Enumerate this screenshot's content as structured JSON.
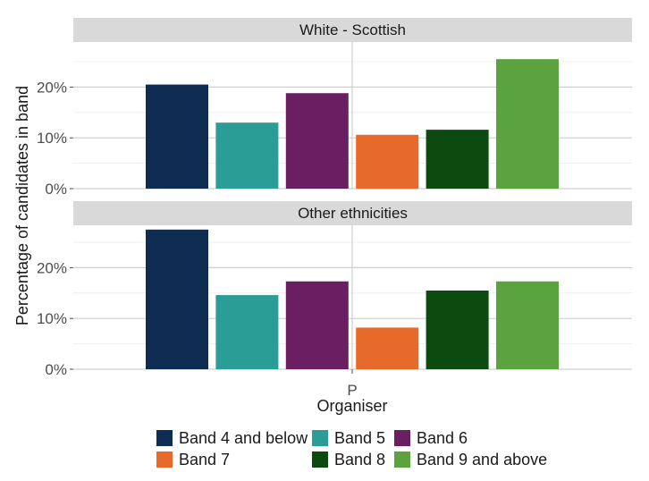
{
  "chart_data": {
    "type": "bar",
    "xlabel": "Organiser",
    "ylabel": "Percentage of candidates in band",
    "x_category": "P",
    "y_ticks": [
      "0%",
      "10%",
      "20%"
    ],
    "ylim": [
      0,
      30
    ],
    "grid": true,
    "legend_position": "bottom",
    "series": [
      {
        "name": "Band 4 and below",
        "color": "#0f2d52"
      },
      {
        "name": "Band 5",
        "color": "#2a9d96"
      },
      {
        "name": "Band 6",
        "color": "#6a1f63"
      },
      {
        "name": "Band 7",
        "color": "#e86a2b"
      },
      {
        "name": "Band 8",
        "color": "#0d4a0f"
      },
      {
        "name": "Band 9 and above",
        "color": "#5ba33e"
      }
    ],
    "panels": [
      {
        "title": "White - Scottish",
        "values": [
          20.5,
          13.0,
          18.8,
          10.6,
          11.6,
          25.5
        ]
      },
      {
        "title": "Other ethnicities",
        "values": [
          27.5,
          14.6,
          17.3,
          8.2,
          15.5,
          17.3
        ]
      }
    ]
  }
}
